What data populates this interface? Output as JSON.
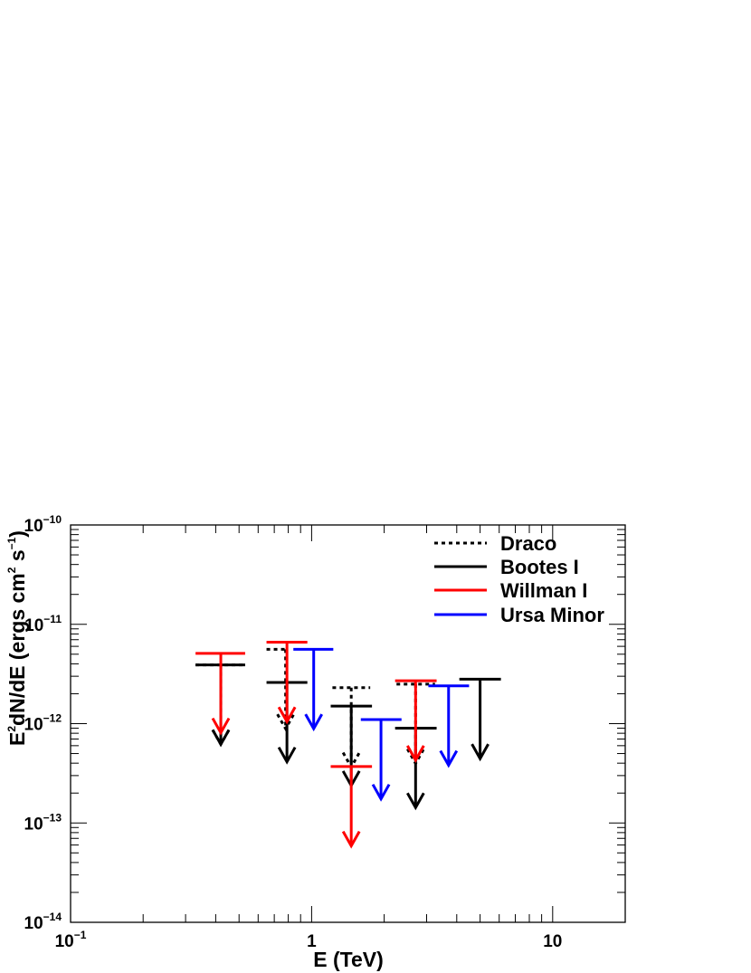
{
  "chart_data": {
    "type": "scatter",
    "title": "",
    "xlabel": "E (TeV)",
    "ylabel": "E2dN/dE (ergs cm2 s-1)",
    "xscale": "log",
    "yscale": "log",
    "xlim": [
      0.1,
      20
    ],
    "ylim": [
      1e-14,
      1e-10
    ],
    "x_tick_labels": [
      {
        "value": 0.1,
        "base": "10",
        "exp": "−1"
      },
      {
        "value": 1,
        "base": "1",
        "exp": ""
      },
      {
        "value": 10,
        "base": "10",
        "exp": ""
      }
    ],
    "y_tick_labels": [
      {
        "value": 1e-10,
        "base": "10",
        "exp": "−10"
      },
      {
        "value": 1e-11,
        "base": "10",
        "exp": "−11"
      },
      {
        "value": 1e-12,
        "base": "10",
        "exp": "−12"
      },
      {
        "value": 1e-13,
        "base": "10",
        "exp": "−13"
      },
      {
        "value": 1e-14,
        "base": "10",
        "exp": "−14"
      }
    ],
    "ylabel_parts": {
      "pre": "E",
      "sup1": "2",
      "mid": "dN/dE (ergs cm",
      "sup2": "2",
      "mid2": " s",
      "sup3": "−1",
      "post": ")"
    },
    "marker": "upper-limit arrow",
    "legend_position": "top-right",
    "series": [
      {
        "name": "Draco",
        "color": "#000000",
        "style": "dotted",
        "points": [
          {
            "x": 0.42,
            "x_lo": 0.33,
            "x_hi": 0.53,
            "y": 3.9e-12
          },
          {
            "x": 0.78,
            "x_lo": 0.65,
            "x_hi": 0.78,
            "y": 5.6e-12
          },
          {
            "x": 1.46,
            "x_lo": 1.22,
            "x_hi": 1.75,
            "y": 2.3e-12
          },
          {
            "x": 2.7,
            "x_lo": 2.25,
            "x_hi": 3.25,
            "y": 2.5e-12
          }
        ]
      },
      {
        "name": "Bootes I",
        "color": "#000000",
        "style": "solid",
        "points": [
          {
            "x": 0.42,
            "x_lo": 0.33,
            "x_hi": 0.53,
            "y": 3.9e-12
          },
          {
            "x": 0.79,
            "x_lo": 0.65,
            "x_hi": 0.96,
            "y": 2.6e-12
          },
          {
            "x": 1.46,
            "x_lo": 1.2,
            "x_hi": 1.78,
            "y": 1.5e-12
          },
          {
            "x": 2.7,
            "x_lo": 2.22,
            "x_hi": 3.3,
            "y": 9e-13
          },
          {
            "x": 5.0,
            "x_lo": 4.1,
            "x_hi": 6.1,
            "y": 2.8e-12
          }
        ]
      },
      {
        "name": "Willman I",
        "color": "#ff0000",
        "style": "solid",
        "points": [
          {
            "x": 0.42,
            "x_lo": 0.33,
            "x_hi": 0.53,
            "y": 5.1e-12
          },
          {
            "x": 0.79,
            "x_lo": 0.65,
            "x_hi": 0.96,
            "y": 6.6e-12
          },
          {
            "x": 1.46,
            "x_lo": 1.2,
            "x_hi": 1.78,
            "y": 3.7e-13
          },
          {
            "x": 2.7,
            "x_lo": 2.22,
            "x_hi": 3.3,
            "y": 2.7e-12
          }
        ]
      },
      {
        "name": "Ursa Minor",
        "color": "#0000ff",
        "style": "solid",
        "points": [
          {
            "x": 1.02,
            "x_lo": 0.84,
            "x_hi": 1.23,
            "y": 5.6e-12
          },
          {
            "x": 1.94,
            "x_lo": 1.6,
            "x_hi": 2.36,
            "y": 1.1e-12
          },
          {
            "x": 3.7,
            "x_lo": 3.05,
            "x_hi": 4.5,
            "y": 2.4e-12
          }
        ]
      }
    ]
  }
}
